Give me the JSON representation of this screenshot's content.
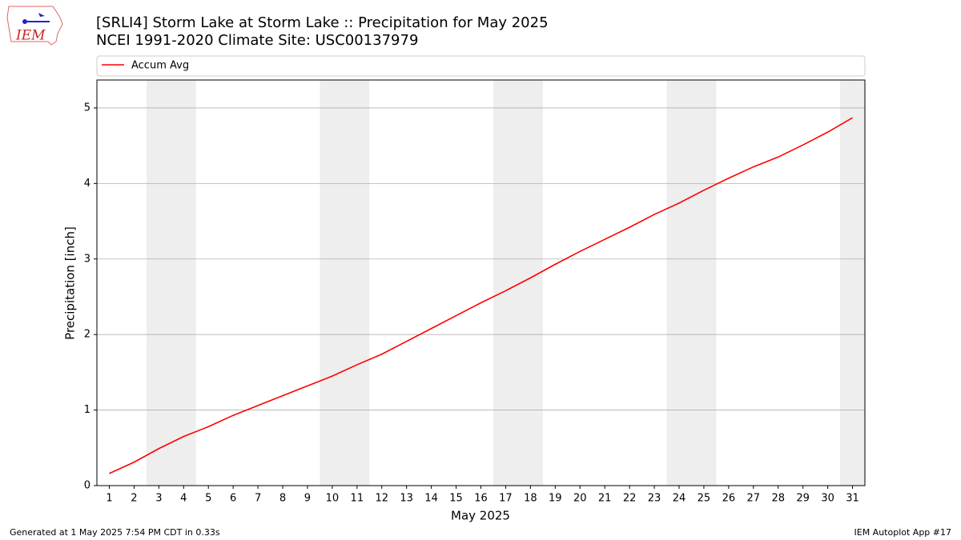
{
  "chart_data": {
    "type": "line",
    "title": "[SRLI4] Storm Lake at Storm Lake :: Precipitation for May 2025",
    "subtitle": "NCEI 1991-2020 Climate Site: USC00137979",
    "xlabel": "May 2025",
    "ylabel": "Precipitation [inch]",
    "x": [
      1,
      2,
      3,
      4,
      5,
      6,
      7,
      8,
      9,
      10,
      11,
      12,
      13,
      14,
      15,
      16,
      17,
      18,
      19,
      20,
      21,
      22,
      23,
      24,
      25,
      26,
      27,
      28,
      29,
      30,
      31
    ],
    "series": [
      {
        "name": "Accum Avg",
        "color": "#ff0000",
        "values": [
          0.16,
          0.31,
          0.49,
          0.65,
          0.78,
          0.93,
          1.06,
          1.19,
          1.32,
          1.45,
          1.6,
          1.74,
          1.91,
          2.08,
          2.25,
          2.42,
          2.58,
          2.75,
          2.93,
          3.1,
          3.26,
          3.42,
          3.59,
          3.74,
          3.91,
          4.07,
          4.22,
          4.35,
          4.51,
          4.68,
          4.87
        ]
      }
    ],
    "xlim": [
      0.5,
      31.5
    ],
    "ylim": [
      0,
      5.37
    ],
    "xticks": [
      1,
      2,
      3,
      4,
      5,
      6,
      7,
      8,
      9,
      10,
      11,
      12,
      13,
      14,
      15,
      16,
      17,
      18,
      19,
      20,
      21,
      22,
      23,
      24,
      25,
      26,
      27,
      28,
      29,
      30,
      31
    ],
    "yticks": [
      0,
      1,
      2,
      3,
      4,
      5
    ],
    "grid": "y",
    "legend": "top",
    "shaded_ranges": [
      [
        2.5,
        4.5
      ],
      [
        9.5,
        11.5
      ],
      [
        16.5,
        18.5
      ],
      [
        23.5,
        25.5
      ],
      [
        30.5,
        31.5
      ]
    ],
    "shade_color": "#eeeeee"
  },
  "footer": {
    "left": "Generated at 1 May 2025 7:54 PM CDT in 0.33s",
    "right": "IEM Autoplot App #17"
  },
  "logo_text": "IEM"
}
